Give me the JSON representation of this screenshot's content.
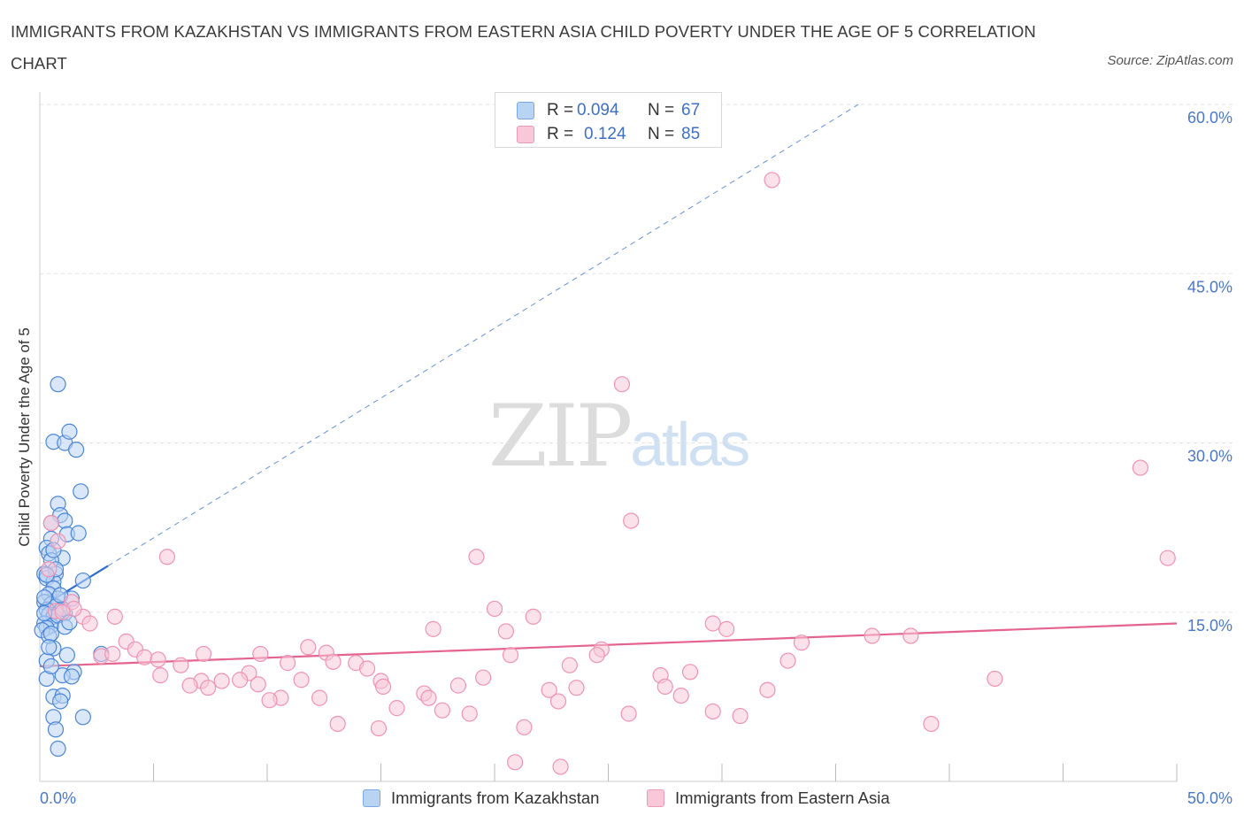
{
  "title": "IMMIGRANTS FROM KAZAKHSTAN VS IMMIGRANTS FROM EASTERN ASIA CHILD POVERTY UNDER THE AGE OF 5 CORRELATION CHART",
  "source": "Source: ZipAtlas.com",
  "watermark": {
    "zip": "ZIP",
    "atlas": "atlas"
  },
  "legend": {
    "r_label": "R =",
    "n_label": "N =",
    "series": [
      {
        "name": "Immigrants from Kazakhstan",
        "r": "0.094",
        "n": "67",
        "fill": "#b9d3f3",
        "stroke": "#7aa7e0"
      },
      {
        "name": "Immigrants from Eastern Asia",
        "r": "0.124",
        "n": "85",
        "fill": "#f8c8d8",
        "stroke": "#ee9ab5"
      }
    ]
  },
  "colors": {
    "blue": "#4b86d8",
    "blue_line": "#2f6cd0",
    "pink": "#ef93b1",
    "pink_line": "#e5638f",
    "grid": "#e2e2e2",
    "tick_label": "#4a78c8"
  },
  "chart_data": {
    "type": "scatter",
    "xlabel": "",
    "ylabel": "Child Poverty Under the Age of 5",
    "xlim": [
      0,
      50
    ],
    "ylim": [
      0,
      60
    ],
    "x_tick_labels": [
      {
        "value": 0,
        "label": "0.0%"
      },
      {
        "value": 50,
        "label": "50.0%"
      }
    ],
    "x_minor_ticks": [
      5,
      10,
      15,
      20,
      25,
      30,
      35,
      40,
      45,
      50
    ],
    "y_ticks": [
      {
        "value": 15,
        "label": "15.0%"
      },
      {
        "value": 30,
        "label": "30.0%"
      },
      {
        "value": 45,
        "label": "45.0%"
      },
      {
        "value": 60,
        "label": "60.0%"
      }
    ],
    "series": [
      {
        "name": "Immigrants from Kazakhstan",
        "color": "blue",
        "r": 0.094,
        "n": 67,
        "trend": {
          "solid": [
            [
              0.1,
              15.5
            ],
            [
              3.0,
              19.1
            ]
          ],
          "dashed": [
            [
              3.0,
              19.1
            ],
            [
              36.0,
              60.0
            ]
          ]
        },
        "points": [
          [
            0.8,
            35.2
          ],
          [
            0.6,
            30.1
          ],
          [
            1.1,
            30.0
          ],
          [
            1.3,
            31.0
          ],
          [
            1.6,
            29.4
          ],
          [
            1.8,
            25.7
          ],
          [
            0.8,
            24.6
          ],
          [
            0.9,
            23.6
          ],
          [
            1.1,
            23.1
          ],
          [
            0.5,
            22.9
          ],
          [
            1.2,
            21.9
          ],
          [
            1.7,
            22.0
          ],
          [
            0.5,
            21.5
          ],
          [
            0.3,
            20.7
          ],
          [
            0.4,
            20.2
          ],
          [
            1.0,
            19.8
          ],
          [
            0.5,
            19.6
          ],
          [
            0.2,
            18.4
          ],
          [
            0.7,
            18.4
          ],
          [
            0.3,
            18.0
          ],
          [
            0.6,
            17.7
          ],
          [
            1.9,
            17.8
          ],
          [
            0.6,
            17.1
          ],
          [
            0.4,
            16.6
          ],
          [
            0.8,
            16.2
          ],
          [
            1.4,
            16.2
          ],
          [
            0.2,
            15.9
          ],
          [
            0.5,
            15.7
          ],
          [
            0.7,
            15.5
          ],
          [
            0.3,
            15.2
          ],
          [
            0.9,
            15.1
          ],
          [
            1.1,
            14.9
          ],
          [
            0.4,
            14.8
          ],
          [
            0.6,
            14.6
          ],
          [
            0.2,
            14.0
          ],
          [
            0.5,
            13.8
          ],
          [
            0.3,
            13.6
          ],
          [
            0.1,
            13.4
          ],
          [
            0.6,
            11.8
          ],
          [
            1.2,
            11.2
          ],
          [
            2.7,
            11.3
          ],
          [
            0.3,
            10.7
          ],
          [
            1.5,
            9.7
          ],
          [
            1.0,
            9.4
          ],
          [
            1.4,
            9.3
          ],
          [
            0.3,
            9.1
          ],
          [
            0.6,
            7.5
          ],
          [
            1.0,
            7.6
          ],
          [
            0.9,
            7.1
          ],
          [
            0.6,
            5.7
          ],
          [
            1.9,
            5.7
          ],
          [
            0.7,
            4.6
          ],
          [
            0.8,
            2.9
          ],
          [
            0.2,
            16.3
          ],
          [
            0.8,
            14.7
          ],
          [
            1.0,
            15.3
          ],
          [
            0.4,
            12.9
          ],
          [
            0.5,
            13.1
          ],
          [
            0.2,
            14.9
          ],
          [
            0.7,
            18.8
          ],
          [
            0.3,
            18.3
          ],
          [
            0.9,
            16.5
          ],
          [
            0.6,
            20.5
          ],
          [
            1.1,
            13.7
          ],
          [
            0.4,
            11.9
          ],
          [
            1.3,
            14.1
          ],
          [
            0.5,
            10.2
          ]
        ]
      },
      {
        "name": "Immigrants from Eastern Asia",
        "color": "pink",
        "r": 0.124,
        "n": 85,
        "trend": {
          "solid": [
            [
              0.0,
              10.2
            ],
            [
              50.0,
              14.0
            ]
          ]
        },
        "points": [
          [
            32.2,
            53.3
          ],
          [
            25.6,
            35.2
          ],
          [
            48.4,
            27.8
          ],
          [
            26.0,
            23.1
          ],
          [
            49.6,
            19.8
          ],
          [
            19.2,
            19.9
          ],
          [
            5.6,
            19.9
          ],
          [
            0.5,
            22.9
          ],
          [
            0.8,
            21.3
          ],
          [
            0.4,
            18.8
          ],
          [
            1.4,
            15.9
          ],
          [
            1.9,
            14.6
          ],
          [
            3.3,
            14.6
          ],
          [
            2.2,
            14.0
          ],
          [
            0.7,
            15.1
          ],
          [
            1.5,
            15.3
          ],
          [
            20.0,
            15.3
          ],
          [
            21.7,
            14.6
          ],
          [
            29.6,
            14.0
          ],
          [
            30.2,
            13.5
          ],
          [
            17.3,
            13.5
          ],
          [
            20.5,
            13.3
          ],
          [
            36.6,
            12.9
          ],
          [
            38.3,
            12.9
          ],
          [
            33.5,
            12.3
          ],
          [
            3.8,
            12.4
          ],
          [
            4.2,
            11.7
          ],
          [
            11.8,
            11.9
          ],
          [
            7.2,
            11.3
          ],
          [
            9.7,
            11.3
          ],
          [
            12.6,
            11.4
          ],
          [
            2.7,
            11.1
          ],
          [
            4.6,
            11.0
          ],
          [
            5.2,
            10.8
          ],
          [
            24.7,
            11.7
          ],
          [
            24.5,
            11.2
          ],
          [
            20.7,
            11.2
          ],
          [
            6.2,
            10.3
          ],
          [
            10.9,
            10.5
          ],
          [
            12.9,
            10.6
          ],
          [
            13.9,
            10.5
          ],
          [
            14.4,
            10.0
          ],
          [
            23.3,
            10.3
          ],
          [
            32.9,
            10.7
          ],
          [
            28.6,
            9.7
          ],
          [
            27.3,
            9.4
          ],
          [
            9.2,
            9.6
          ],
          [
            5.3,
            9.4
          ],
          [
            19.5,
            9.2
          ],
          [
            8.0,
            8.9
          ],
          [
            7.1,
            8.9
          ],
          [
            8.8,
            9.0
          ],
          [
            9.6,
            8.6
          ],
          [
            11.5,
            9.0
          ],
          [
            15.0,
            8.9
          ],
          [
            6.6,
            8.5
          ],
          [
            15.1,
            8.4
          ],
          [
            7.4,
            8.3
          ],
          [
            18.4,
            8.5
          ],
          [
            23.6,
            8.3
          ],
          [
            22.4,
            8.1
          ],
          [
            27.5,
            8.4
          ],
          [
            32.0,
            8.1
          ],
          [
            42.0,
            9.1
          ],
          [
            16.9,
            7.8
          ],
          [
            17.1,
            7.4
          ],
          [
            10.6,
            7.4
          ],
          [
            10.1,
            7.2
          ],
          [
            12.3,
            7.4
          ],
          [
            22.8,
            7.1
          ],
          [
            28.2,
            7.6
          ],
          [
            15.7,
            6.5
          ],
          [
            17.7,
            6.3
          ],
          [
            18.9,
            6.0
          ],
          [
            25.9,
            6.0
          ],
          [
            29.6,
            6.2
          ],
          [
            30.8,
            5.8
          ],
          [
            13.1,
            5.1
          ],
          [
            39.2,
            5.1
          ],
          [
            14.9,
            4.7
          ],
          [
            21.3,
            4.8
          ],
          [
            20.9,
            1.7
          ],
          [
            22.9,
            1.3
          ],
          [
            3.2,
            11.3
          ],
          [
            1.0,
            15.0
          ]
        ]
      }
    ]
  }
}
